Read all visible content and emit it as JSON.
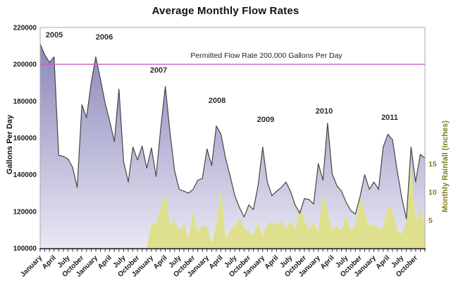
{
  "title": "Average Monthly Flow Rates",
  "years": [
    "2005",
    "2006",
    "2007",
    "2008",
    "2009",
    "2010",
    "2011"
  ],
  "permitted_line": {
    "label": "Permitted Flow Rate 200,000 Gallons Per Day",
    "value": 200000
  },
  "y_axis_left": {
    "label": "Gallons Per Day",
    "ticks": [
      "100000",
      "120000",
      "140000",
      "160000",
      "180000",
      "200000",
      "220000"
    ],
    "min": 100000,
    "max": 220000
  },
  "y_axis_right": {
    "label": "Monthly Rainfall (inches)",
    "ticks": [
      "5",
      "10",
      "15"
    ],
    "min": 0
  },
  "x_axis": {
    "months_total": 84,
    "start": "January 2005",
    "end": "December 2011",
    "tick_labels": [
      "January",
      "April",
      "July",
      "October",
      "January",
      "April",
      "July",
      "October",
      "January",
      "April",
      "July",
      "October",
      "January",
      "April",
      "July",
      "October",
      "January",
      "April",
      "July",
      "October",
      "January",
      "April",
      "July",
      "October",
      "January",
      "April",
      "July",
      "October"
    ]
  },
  "colors": {
    "flow_top": "#8380b5",
    "flow_bottom": "#e9e8f4",
    "flow_line": "#454545",
    "rainfall": "#dfe08d",
    "permitted": "#c95fc4",
    "right_axis_text": "#7d7d1e",
    "text": "#1a1a1a",
    "plot_border": "#a9a9a9",
    "axis_line": "#222222"
  },
  "chart_data": {
    "type": "area",
    "title": "Average Monthly Flow Rates",
    "x_unit": "month",
    "x_range": "January 2005 - December 2011",
    "grid": "none",
    "legend": "none",
    "left_axis": {
      "label": "Gallons Per Day",
      "min": 100000,
      "max": 220000,
      "tick_step": 20000
    },
    "right_axis": {
      "label": "Monthly Rainfall (inches)",
      "ticks": [
        5,
        10,
        15
      ]
    },
    "reference_line": {
      "label": "Permitted Flow Rate 200,000 Gallons Per Day",
      "value": 200000
    },
    "series": [
      {
        "name": "Average Monthly Flow Rate (Gallons Per Day)",
        "axis": "left",
        "start_month_index": 0,
        "values": [
          211000,
          205000,
          201000,
          204000,
          150500,
          150000,
          148500,
          144000,
          133000,
          178000,
          171000,
          190000,
          204000,
          192000,
          179000,
          169000,
          158000,
          186500,
          147000,
          136000,
          155000,
          148000,
          155500,
          143500,
          154500,
          139000,
          165000,
          188000,
          163000,
          142000,
          132000,
          131000,
          130000,
          132000,
          137000,
          138000,
          154000,
          145000,
          166500,
          162000,
          149000,
          139000,
          128500,
          122000,
          117000,
          123500,
          121000,
          134000,
          155000,
          136000,
          128500,
          131000,
          133000,
          136000,
          131000,
          123500,
          119000,
          127000,
          126500,
          124000,
          146000,
          137000,
          168000,
          140500,
          134000,
          131000,
          125000,
          120500,
          118500,
          128000,
          140000,
          132000,
          136000,
          132000,
          155000,
          162000,
          159000,
          142500,
          127500,
          116000,
          155000,
          136000,
          151000,
          149000
        ]
      },
      {
        "name": "Monthly Rainfall (inches)",
        "axis": "right",
        "start_month_index": 23,
        "values": [
          0,
          4.3,
          4.4,
          7.0,
          10.0,
          4.2,
          4.8,
          3.2,
          4.4,
          1.8,
          6.8,
          2.8,
          4.2,
          3.8,
          0.8,
          4.0,
          10.8,
          1.7,
          3.3,
          4.0,
          5.4,
          3.5,
          3.0,
          2.5,
          4.5,
          2.1,
          4.4,
          4.6,
          4.0,
          5.0,
          3.6,
          4.8,
          3.2,
          7.2,
          4.8,
          3.5,
          4.5,
          3.0,
          9.6,
          6.5,
          3.2,
          4.0,
          3.0,
          5.8,
          3.2,
          4.0,
          9.2,
          6.5,
          3.8,
          4.4,
          3.4,
          3.8,
          7.5,
          6.7,
          3.2,
          2.5,
          4.8,
          15.5,
          4.6,
          6.9,
          3.8
        ]
      }
    ]
  }
}
